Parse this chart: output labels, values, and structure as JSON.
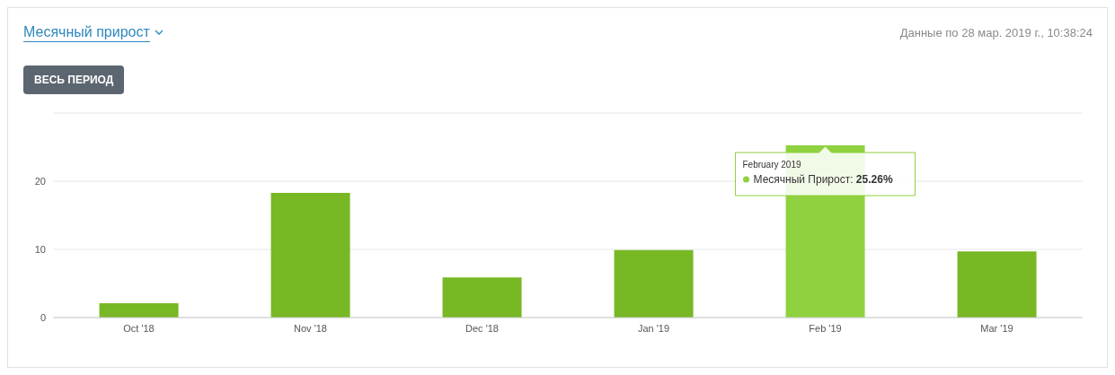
{
  "chart_data": {
    "type": "bar",
    "title": "Месячный прирост",
    "subtitle": "Данные по 28 мар. 2019 г., 10:38:24",
    "categories": [
      "Oct '18",
      "Nov '18",
      "Dec '18",
      "Jan '19",
      "Feb '19",
      "Mar '19"
    ],
    "values": [
      2.1,
      18.3,
      5.9,
      9.9,
      25.26,
      9.7
    ],
    "colors": [
      "#77b824",
      "#77b824",
      "#77b824",
      "#77b824",
      "#8fd13f",
      "#77b824"
    ],
    "ylim": [
      0,
      30
    ],
    "yticks": [
      0,
      10,
      20
    ],
    "grid": "y",
    "legend": false,
    "annotations": [
      "ВЕСЬ ПЕРИОД",
      "February 2019",
      "Месячный Прирост: 25.26%"
    ]
  }
}
